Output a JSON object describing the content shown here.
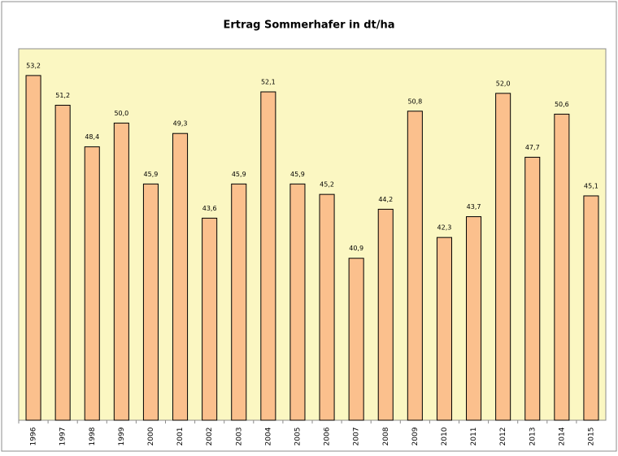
{
  "chart_data": {
    "type": "bar",
    "title": "Ertrag Sommerhafer in dt/ha",
    "categories": [
      "1996",
      "1997",
      "1998",
      "1999",
      "2000",
      "2001",
      "2002",
      "2003",
      "2004",
      "2005",
      "2006",
      "2007",
      "2008",
      "2009",
      "2010",
      "2011",
      "2012",
      "2013",
      "2014",
      "2015"
    ],
    "values": [
      53.2,
      51.2,
      48.4,
      50.0,
      45.9,
      49.3,
      43.6,
      45.9,
      52.1,
      45.9,
      45.2,
      40.9,
      44.2,
      50.8,
      42.3,
      43.7,
      52.0,
      47.7,
      50.6,
      45.1
    ],
    "value_labels": [
      "53,2",
      "51,2",
      "48,4",
      "50,0",
      "45,9",
      "49,3",
      "43,6",
      "45,9",
      "52,1",
      "45,9",
      "45,2",
      "40,9",
      "44,2",
      "50,8",
      "42,3",
      "43,7",
      "52,0",
      "47,7",
      "50,6",
      "45,1"
    ],
    "color": "#fbc08d",
    "ylim": [
      30,
      55
    ]
  }
}
